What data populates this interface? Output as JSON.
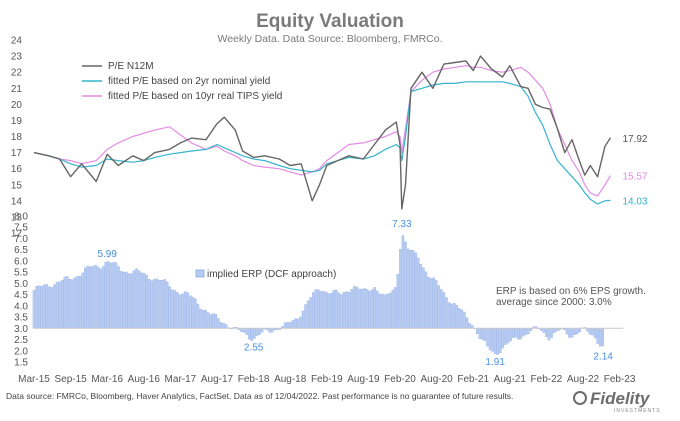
{
  "chart_data": {
    "type": "line",
    "title": "Equity Valuation",
    "subtitle": "Weekly Data. Data Source: Bloomberg, FMRCo.",
    "x_labels": [
      "Mar-15",
      "Sep-15",
      "Mar-16",
      "Aug-16",
      "Mar-17",
      "Aug-17",
      "Feb-18",
      "Aug-18",
      "Feb-19",
      "Aug-19",
      "Feb-20",
      "Aug-20",
      "Feb-21",
      "Aug-21",
      "Feb-22",
      "Aug-22",
      "Feb-23"
    ],
    "upper_panel": {
      "ylim": [
        12,
        24
      ],
      "y_ticks": [
        12,
        13,
        14,
        15,
        16,
        17,
        18,
        19,
        20,
        21,
        22,
        23,
        24
      ],
      "series": [
        {
          "name": "P/E N12M",
          "color": "#666666",
          "end_label": "17.92",
          "points": [
            [
              0,
              17.0
            ],
            [
              0.4,
              16.8
            ],
            [
              0.7,
              16.6
            ],
            [
              1.0,
              15.5
            ],
            [
              1.3,
              16.3
            ],
            [
              1.7,
              15.2
            ],
            [
              2.0,
              16.9
            ],
            [
              2.3,
              16.2
            ],
            [
              2.7,
              16.8
            ],
            [
              3.0,
              16.5
            ],
            [
              3.3,
              17.0
            ],
            [
              3.7,
              17.2
            ],
            [
              4.0,
              17.6
            ],
            [
              4.3,
              17.9
            ],
            [
              4.7,
              17.8
            ],
            [
              5.0,
              18.8
            ],
            [
              5.2,
              19.2
            ],
            [
              5.5,
              18.4
            ],
            [
              5.7,
              17.1
            ],
            [
              6.0,
              16.7
            ],
            [
              6.3,
              16.8
            ],
            [
              6.7,
              16.6
            ],
            [
              7.0,
              16.2
            ],
            [
              7.3,
              16.3
            ],
            [
              7.6,
              14.0
            ],
            [
              7.8,
              15.0
            ],
            [
              8.0,
              16.2
            ],
            [
              8.3,
              16.5
            ],
            [
              8.6,
              16.8
            ],
            [
              9.0,
              16.6
            ],
            [
              9.3,
              17.5
            ],
            [
              9.6,
              18.4
            ],
            [
              9.9,
              18.9
            ],
            [
              10.0,
              17.5
            ],
            [
              10.05,
              13.5
            ],
            [
              10.15,
              15.0
            ],
            [
              10.3,
              21.0
            ],
            [
              10.6,
              22.0
            ],
            [
              10.9,
              21.0
            ],
            [
              11.2,
              22.5
            ],
            [
              11.5,
              22.6
            ],
            [
              11.8,
              22.7
            ],
            [
              12.0,
              22.1
            ],
            [
              12.2,
              23.0
            ],
            [
              12.5,
              22.2
            ],
            [
              12.8,
              21.7
            ],
            [
              13.0,
              22.4
            ],
            [
              13.3,
              21.1
            ],
            [
              13.5,
              21.0
            ],
            [
              13.7,
              20.0
            ],
            [
              13.9,
              19.8
            ],
            [
              14.1,
              19.7
            ],
            [
              14.3,
              18.5
            ],
            [
              14.5,
              17.0
            ],
            [
              14.7,
              17.8
            ],
            [
              14.9,
              16.5
            ],
            [
              15.05,
              15.6
            ],
            [
              15.2,
              16.2
            ],
            [
              15.4,
              15.5
            ],
            [
              15.6,
              17.4
            ],
            [
              15.75,
              17.92
            ]
          ]
        },
        {
          "name": "fitted P/E based on 2yr nominal yield",
          "color": "#35b3cc",
          "end_label": "14.03",
          "points": [
            [
              0,
              17.0
            ],
            [
              0.4,
              16.8
            ],
            [
              0.7,
              16.6
            ],
            [
              1.0,
              16.3
            ],
            [
              1.3,
              16.1
            ],
            [
              1.7,
              16.2
            ],
            [
              2.0,
              16.6
            ],
            [
              2.3,
              16.5
            ],
            [
              2.7,
              16.4
            ],
            [
              3.0,
              16.5
            ],
            [
              3.3,
              16.7
            ],
            [
              3.7,
              16.9
            ],
            [
              4.0,
              17.0
            ],
            [
              4.3,
              17.1
            ],
            [
              4.7,
              17.2
            ],
            [
              5.0,
              17.5
            ],
            [
              5.2,
              17.3
            ],
            [
              5.5,
              17.0
            ],
            [
              5.7,
              16.8
            ],
            [
              6.0,
              16.6
            ],
            [
              6.3,
              16.5
            ],
            [
              6.7,
              16.2
            ],
            [
              7.0,
              16.0
            ],
            [
              7.3,
              15.9
            ],
            [
              7.6,
              15.8
            ],
            [
              7.8,
              15.9
            ],
            [
              8.0,
              16.3
            ],
            [
              8.3,
              16.5
            ],
            [
              8.6,
              16.7
            ],
            [
              9.0,
              16.6
            ],
            [
              9.3,
              16.8
            ],
            [
              9.6,
              17.2
            ],
            [
              9.9,
              17.5
            ],
            [
              10.0,
              17.3
            ],
            [
              10.05,
              16.5
            ],
            [
              10.15,
              18.0
            ],
            [
              10.3,
              20.8
            ],
            [
              10.6,
              21.0
            ],
            [
              10.9,
              21.2
            ],
            [
              11.2,
              21.3
            ],
            [
              11.5,
              21.3
            ],
            [
              11.8,
              21.4
            ],
            [
              12.0,
              21.4
            ],
            [
              12.2,
              21.4
            ],
            [
              12.5,
              21.4
            ],
            [
              12.8,
              21.4
            ],
            [
              13.0,
              21.3
            ],
            [
              13.3,
              21.1
            ],
            [
              13.5,
              20.5
            ],
            [
              13.7,
              19.5
            ],
            [
              13.9,
              18.7
            ],
            [
              14.1,
              17.5
            ],
            [
              14.3,
              16.5
            ],
            [
              14.5,
              16.0
            ],
            [
              14.7,
              15.5
            ],
            [
              14.9,
              15.0
            ],
            [
              15.05,
              14.5
            ],
            [
              15.2,
              14.1
            ],
            [
              15.4,
              13.8
            ],
            [
              15.6,
              14.0
            ],
            [
              15.75,
              14.03
            ]
          ]
        },
        {
          "name": "fitted P/E based on 10yr real TIPS yield",
          "color": "#e48be4",
          "end_label": "15.57",
          "points": [
            [
              0,
              17.0
            ],
            [
              0.4,
              16.8
            ],
            [
              0.7,
              16.6
            ],
            [
              1.0,
              16.5
            ],
            [
              1.3,
              16.3
            ],
            [
              1.7,
              16.5
            ],
            [
              2.0,
              17.2
            ],
            [
              2.3,
              17.6
            ],
            [
              2.7,
              18.0
            ],
            [
              3.0,
              18.2
            ],
            [
              3.3,
              18.4
            ],
            [
              3.7,
              18.6
            ],
            [
              4.0,
              18.1
            ],
            [
              4.3,
              17.6
            ],
            [
              4.7,
              17.2
            ],
            [
              5.0,
              17.4
            ],
            [
              5.2,
              17.1
            ],
            [
              5.5,
              16.8
            ],
            [
              5.7,
              16.5
            ],
            [
              6.0,
              16.2
            ],
            [
              6.3,
              16.1
            ],
            [
              6.7,
              16.0
            ],
            [
              7.0,
              15.8
            ],
            [
              7.3,
              15.6
            ],
            [
              7.6,
              15.8
            ],
            [
              7.8,
              16.0
            ],
            [
              8.0,
              16.5
            ],
            [
              8.3,
              17.0
            ],
            [
              8.6,
              17.5
            ],
            [
              9.0,
              17.6
            ],
            [
              9.3,
              17.8
            ],
            [
              9.6,
              18.0
            ],
            [
              9.9,
              18.3
            ],
            [
              10.0,
              18.0
            ],
            [
              10.05,
              17.0
            ],
            [
              10.15,
              18.5
            ],
            [
              10.3,
              20.8
            ],
            [
              10.6,
              21.5
            ],
            [
              10.9,
              22.0
            ],
            [
              11.2,
              22.2
            ],
            [
              11.5,
              22.3
            ],
            [
              11.8,
              22.4
            ],
            [
              12.0,
              22.3
            ],
            [
              12.2,
              22.3
            ],
            [
              12.5,
              22.1
            ],
            [
              12.8,
              22.0
            ],
            [
              13.0,
              22.1
            ],
            [
              13.3,
              22.3
            ],
            [
              13.5,
              22.0
            ],
            [
              13.7,
              21.5
            ],
            [
              13.9,
              21.0
            ],
            [
              14.1,
              20.0
            ],
            [
              14.3,
              18.5
            ],
            [
              14.5,
              17.5
            ],
            [
              14.7,
              16.5
            ],
            [
              14.9,
              15.8
            ],
            [
              15.05,
              15.0
            ],
            [
              15.2,
              14.5
            ],
            [
              15.4,
              14.3
            ],
            [
              15.6,
              15.0
            ],
            [
              15.75,
              15.57
            ]
          ]
        }
      ]
    },
    "lower_panel": {
      "type": "bar",
      "name": "implied ERP (DCF approach)",
      "color": "#b8ccf2",
      "ylim": [
        1.5,
        8.0
      ],
      "y_ticks": [
        1.5,
        2.0,
        2.5,
        3.0,
        3.5,
        4.0,
        4.5,
        5.0,
        5.5,
        6.0,
        6.5,
        7.0,
        7.5,
        8.0
      ],
      "baseline": 3.0,
      "points": [
        [
          0,
          4.7
        ],
        [
          0.5,
          5.0
        ],
        [
          1.0,
          5.2
        ],
        [
          1.4,
          5.6
        ],
        [
          1.8,
          5.8
        ],
        [
          2.0,
          5.99
        ],
        [
          2.4,
          5.6
        ],
        [
          2.8,
          5.5
        ],
        [
          3.2,
          5.3
        ],
        [
          3.6,
          5.0
        ],
        [
          4.0,
          4.6
        ],
        [
          4.4,
          4.3
        ],
        [
          4.8,
          3.6
        ],
        [
          5.2,
          3.3
        ],
        [
          5.5,
          2.9
        ],
        [
          5.8,
          2.75
        ],
        [
          6.0,
          2.55
        ],
        [
          6.3,
          2.8
        ],
        [
          6.6,
          3.0
        ],
        [
          6.9,
          3.1
        ],
        [
          7.2,
          3.5
        ],
        [
          7.5,
          4.2
        ],
        [
          7.8,
          4.8
        ],
        [
          8.1,
          4.6
        ],
        [
          8.4,
          4.5
        ],
        [
          8.7,
          4.9
        ],
        [
          9.0,
          4.6
        ],
        [
          9.3,
          4.9
        ],
        [
          9.6,
          4.3
        ],
        [
          9.9,
          4.9
        ],
        [
          10.05,
          7.33
        ],
        [
          10.2,
          6.5
        ],
        [
          10.5,
          6.2
        ],
        [
          10.8,
          5.3
        ],
        [
          11.1,
          4.8
        ],
        [
          11.4,
          4.2
        ],
        [
          11.7,
          3.7
        ],
        [
          12.0,
          3.2
        ],
        [
          12.2,
          2.5
        ],
        [
          12.4,
          2.1
        ],
        [
          12.6,
          1.91
        ],
        [
          12.9,
          2.2
        ],
        [
          13.2,
          2.6
        ],
        [
          13.5,
          2.8
        ],
        [
          13.8,
          3.0
        ],
        [
          14.1,
          2.6
        ],
        [
          14.4,
          2.9
        ],
        [
          14.7,
          2.7
        ],
        [
          15.0,
          2.9
        ],
        [
          15.3,
          2.7
        ],
        [
          15.55,
          2.14
        ]
      ],
      "labels": [
        {
          "text": "5.99",
          "x": 2.0,
          "y": 5.99
        },
        {
          "text": "2.55",
          "x": 6.0,
          "y": 2.55
        },
        {
          "text": "7.33",
          "x": 10.05,
          "y": 7.33
        },
        {
          "text": "1.91",
          "x": 12.6,
          "y": 1.91
        },
        {
          "text": "2.14",
          "x": 15.55,
          "y": 2.14
        }
      ],
      "note_lines": [
        "ERP is based on 6% EPS growth.",
        "average since 2000: 3.0%"
      ]
    },
    "label_color": "#4a8fe0"
  },
  "footer": {
    "source": "Data source: FMRCo, Bloomberg, Haver Analytics, FactSet. Data as of 12/04/2022. Past performance is no guarantee of future results.",
    "logo": "Fidelity",
    "logo_sub": "INVESTMENTS"
  }
}
